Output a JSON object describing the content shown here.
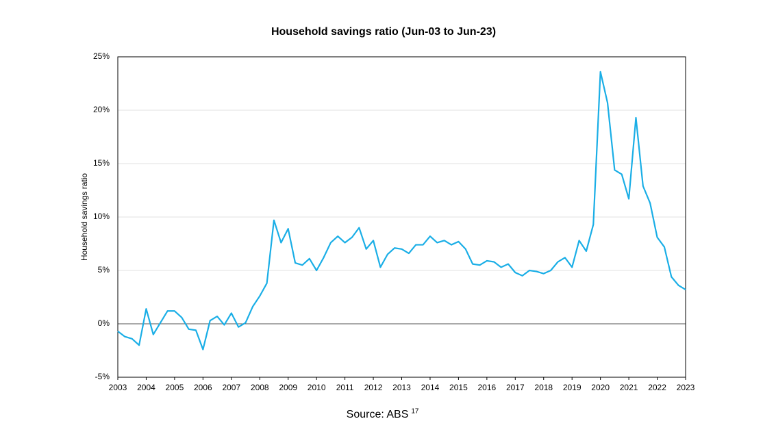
{
  "chart_data": {
    "type": "line",
    "title": "Household savings ratio (Jun-03 to Jun-23)",
    "y_label": "Household savings ratio",
    "source": {
      "text": "Source: ABS",
      "ref": "17"
    },
    "x": [
      2003,
      2003.25,
      2003.5,
      2003.75,
      2004,
      2004.25,
      2004.5,
      2004.75,
      2005,
      2005.25,
      2005.5,
      2005.75,
      2006,
      2006.25,
      2006.5,
      2006.75,
      2007,
      2007.25,
      2007.5,
      2007.75,
      2008,
      2008.25,
      2008.5,
      2008.75,
      2009,
      2009.25,
      2009.5,
      2009.75,
      2010,
      2010.25,
      2010.5,
      2010.75,
      2011,
      2011.25,
      2011.5,
      2011.75,
      2012,
      2012.25,
      2012.5,
      2012.75,
      2013,
      2013.25,
      2013.5,
      2013.75,
      2014,
      2014.25,
      2014.5,
      2014.75,
      2015,
      2015.25,
      2015.5,
      2015.75,
      2016,
      2016.25,
      2016.5,
      2016.75,
      2017,
      2017.25,
      2017.5,
      2017.75,
      2018,
      2018.25,
      2018.5,
      2018.75,
      2019,
      2019.25,
      2019.5,
      2019.75,
      2020,
      2020.25,
      2020.5,
      2020.75,
      2021,
      2021.25,
      2021.5,
      2021.75,
      2022,
      2022.25,
      2022.5,
      2022.75,
      2023
    ],
    "series": [
      {
        "name": "Household savings ratio",
        "color": "#1aaee6",
        "values": [
          -0.7,
          -1.2,
          -1.4,
          -2.0,
          1.4,
          -1.0,
          0.1,
          1.2,
          1.2,
          0.6,
          -0.5,
          -0.6,
          -2.4,
          0.3,
          0.7,
          -0.1,
          1.0,
          -0.3,
          0.1,
          1.6,
          2.6,
          3.8,
          9.7,
          7.6,
          8.9,
          5.7,
          5.5,
          6.1,
          5.0,
          6.2,
          7.6,
          8.2,
          7.6,
          8.1,
          9.0,
          7.0,
          7.8,
          5.3,
          6.5,
          7.1,
          7.0,
          6.6,
          7.4,
          7.4,
          8.2,
          7.6,
          7.8,
          7.4,
          7.7,
          7.0,
          5.6,
          5.5,
          5.9,
          5.8,
          5.3,
          5.6,
          4.8,
          4.5,
          5.0,
          4.9,
          4.7,
          5.0,
          5.8,
          6.2,
          5.3,
          7.8,
          6.8,
          9.3,
          23.6,
          20.7,
          14.4,
          14.0,
          11.7,
          19.3,
          12.9,
          11.3,
          8.1,
          7.2,
          4.4,
          3.6,
          3.2
        ]
      }
    ],
    "xlim": [
      2003,
      2023
    ],
    "xticks": [
      2003,
      2004,
      2005,
      2006,
      2007,
      2008,
      2009,
      2010,
      2011,
      2012,
      2013,
      2014,
      2015,
      2016,
      2017,
      2018,
      2019,
      2020,
      2021,
      2022,
      2023
    ],
    "ylim": [
      -5,
      25
    ],
    "yticks": [
      {
        "value": -5,
        "label": "-5%"
      },
      {
        "value": 0,
        "label": "0%"
      },
      {
        "value": 5,
        "label": "5%"
      },
      {
        "value": 10,
        "label": "10%"
      },
      {
        "value": 15,
        "label": "15%"
      },
      {
        "value": 20,
        "label": "20%"
      },
      {
        "value": 25,
        "label": "25%"
      }
    ],
    "grid": true
  }
}
